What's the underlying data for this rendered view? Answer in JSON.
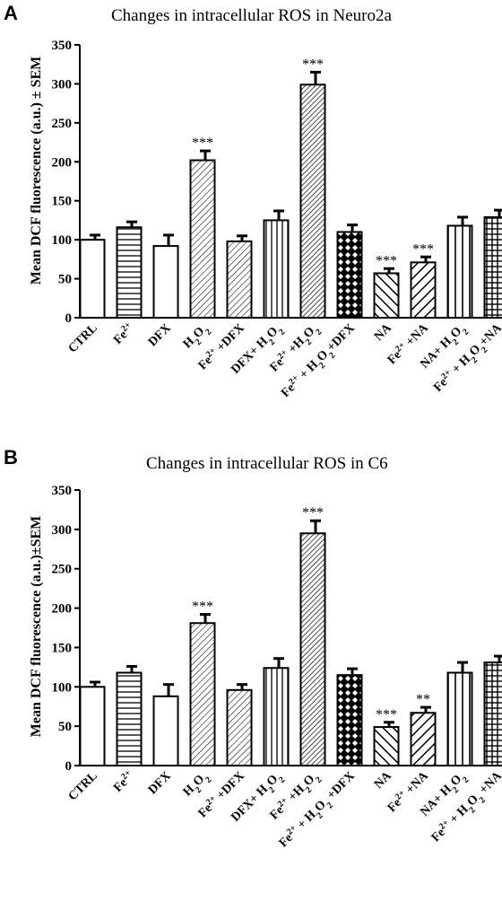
{
  "figure": {
    "panels": [
      "A",
      "B"
    ]
  },
  "chart_data": [
    {
      "type": "bar",
      "panel": "A",
      "title": "Changes in intracellular ROS in Neuro2a",
      "ylabel": "Mean DCF fluorescence (a.u.) ± SEM",
      "xlabel": "",
      "ylim": [
        0,
        350
      ],
      "yticks": [
        "0",
        "50",
        "100",
        "150",
        "200",
        "250",
        "300",
        "350"
      ],
      "grid": false,
      "categories": [
        "CTRL",
        "Fe2+",
        "DFX",
        "H2O2",
        "Fe2+ +DFX",
        "DFX+ H2O2",
        "Fe2+ +H2O2",
        "Fe2+ + H2O2+DFX",
        "NA",
        "Fe2+ +NA",
        "NA+ H2O2",
        "Fe2+ + H2O2+NA"
      ],
      "values": [
        100,
        116,
        92,
        202,
        98,
        125,
        299,
        110,
        57,
        71,
        118,
        129
      ],
      "errors": [
        6,
        7,
        14,
        12,
        7,
        12,
        16,
        9,
        6,
        7,
        11,
        9
      ],
      "significance": [
        "",
        "",
        "",
        "***",
        "",
        "",
        "***",
        "",
        "***",
        "***",
        "",
        ""
      ],
      "patterns": [
        "blank",
        "hlines",
        "blank",
        "diag-fine",
        "diag-fine",
        "vlines",
        "diag-dense",
        "diamond",
        "diag-back",
        "diag-thick",
        "vlines-sparse",
        "grid"
      ]
    },
    {
      "type": "bar",
      "panel": "B",
      "title": "Changes in intracellular ROS in C6",
      "ylabel": "Mean DCF fluorescence (a.u.)±SEM",
      "xlabel": "",
      "ylim": [
        0,
        350
      ],
      "yticks": [
        "0",
        "50",
        "100",
        "150",
        "200",
        "250",
        "300",
        "350"
      ],
      "grid": false,
      "categories": [
        "CTRL",
        "Fe2+",
        "DFX",
        "H2O2",
        "Fe2+ +DFX",
        "DFX+ H2O2",
        "Fe2+ +H2O2",
        "Fe2+ + H2O2 +DFX",
        "NA",
        "Fe2+ +NA",
        "NA+ H2O2",
        "Fe2+ + H2O2 +NA"
      ],
      "values": [
        100,
        118,
        88,
        181,
        96,
        124,
        295,
        115,
        49,
        67,
        118,
        131
      ],
      "errors": [
        6,
        8,
        15,
        11,
        7,
        12,
        16,
        8,
        6,
        7,
        13,
        8
      ],
      "significance": [
        "",
        "",
        "",
        "***",
        "",
        "",
        "***",
        "",
        "***",
        "**",
        "",
        ""
      ],
      "patterns": [
        "blank",
        "hlines",
        "blank",
        "diag-fine",
        "diag-fine",
        "vlines",
        "diag-dense",
        "diamond",
        "diag-back",
        "diag-thick",
        "vlines-sparse",
        "grid"
      ]
    }
  ]
}
